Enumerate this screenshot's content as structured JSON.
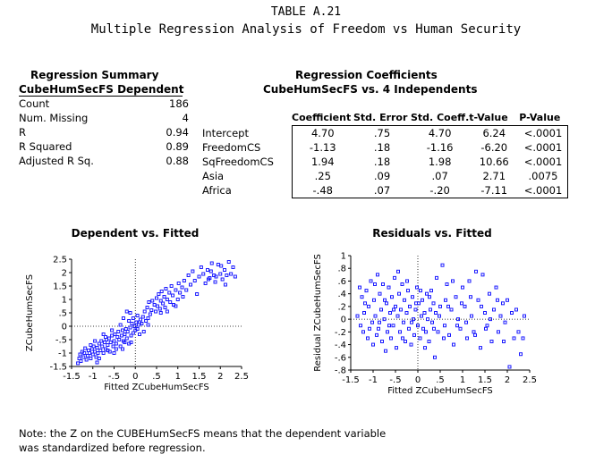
{
  "title": {
    "line1": "TABLE A.21",
    "line2": "Multiple Regression Analysis of Freedom vs Human Security"
  },
  "summary": {
    "heading": "Regression Summary",
    "subheading": "CubeHumSecFS Dependent",
    "rows": [
      {
        "label": "Count",
        "value": "186"
      },
      {
        "label": "Num. Missing",
        "value": "4"
      },
      {
        "label": "R",
        "value": "0.94"
      },
      {
        "label": "R Squared",
        "value": "0.89"
      },
      {
        "label": "Adjusted R Sq.",
        "value": "0.88"
      }
    ]
  },
  "coefficients": {
    "heading": "Regression Coefficients",
    "subheading": "CubeHumSecFS vs. 4 Independents",
    "columns": [
      "Coefficient",
      "Std. Error",
      "Std. Coeff.",
      "t-Value",
      "P-Value"
    ],
    "rows": [
      {
        "label": "Intercept",
        "values": [
          "4.70",
          ".75",
          "4.70",
          "6.24",
          "<.0001"
        ]
      },
      {
        "label": "FreedomCS",
        "values": [
          "-1.13",
          ".18",
          "-1.16",
          "-6.20",
          "<.0001"
        ]
      },
      {
        "label": "SqFreedomCS",
        "values": [
          "1.94",
          ".18",
          "1.98",
          "10.66",
          "<.0001"
        ]
      },
      {
        "label": "Asia",
        "values": [
          ".25",
          ".09",
          ".07",
          "2.71",
          ".0075"
        ]
      },
      {
        "label": "Africa",
        "values": [
          "-.48",
          ".07",
          "-.20",
          "-7.11",
          "<.0001"
        ]
      }
    ]
  },
  "chart_data": [
    {
      "type": "scatter",
      "title": "Dependent vs. Fitted",
      "xlabel": "Fitted ZCubeHumSecFS",
      "ylabel": "ZCubeHumSecFS",
      "xlim": [
        -1.5,
        2.5
      ],
      "ylim": [
        -1.5,
        2.5
      ],
      "xticks": [
        "-1.5",
        "-1",
        "-.5",
        "0",
        ".5",
        "1",
        "1.5",
        "2",
        "2.5"
      ],
      "yticks": [
        "2.5",
        "2",
        "1.5",
        "1",
        ".5",
        "0",
        "-.5",
        "-1",
        "-1.5"
      ],
      "marker_color": "#1a1aff",
      "points": [
        [
          -1.35,
          -1.38
        ],
        [
          -1.32,
          -1.2
        ],
        [
          -1.3,
          -1.05
        ],
        [
          -1.28,
          -1.3
        ],
        [
          -1.25,
          -0.95
        ],
        [
          -1.22,
          -1.15
        ],
        [
          -1.2,
          -1.0
        ],
        [
          -1.18,
          -0.82
        ],
        [
          -1.15,
          -1.25
        ],
        [
          -1.12,
          -1.1
        ],
        [
          -1.1,
          -0.9
        ],
        [
          -1.08,
          -1.0
        ],
        [
          -1.05,
          -1.2
        ],
        [
          -1.02,
          -0.85
        ],
        [
          -1.0,
          -1.05
        ],
        [
          -0.98,
          -0.75
        ],
        [
          -0.95,
          -0.95
        ],
        [
          -0.92,
          -1.15
        ],
        [
          -0.9,
          -0.8
        ],
        [
          -0.88,
          -1.0
        ],
        [
          -0.85,
          -0.65
        ],
        [
          -0.82,
          -0.9
        ],
        [
          -0.8,
          -0.55
        ],
        [
          -0.78,
          -0.75
        ],
        [
          -0.75,
          -1.0
        ],
        [
          -0.72,
          -0.6
        ],
        [
          -0.7,
          -0.85
        ],
        [
          -0.68,
          -0.5
        ],
        [
          -0.65,
          -0.7
        ],
        [
          -0.62,
          -0.45
        ],
        [
          -0.6,
          -0.95
        ],
        [
          -0.58,
          -0.6
        ],
        [
          -0.55,
          -0.35
        ],
        [
          -0.52,
          -0.75
        ],
        [
          -0.5,
          -0.55
        ],
        [
          -0.48,
          -0.3
        ],
        [
          -0.45,
          -0.65
        ],
        [
          -0.42,
          -0.4
        ],
        [
          -0.4,
          -0.2
        ],
        [
          -0.38,
          -0.5
        ],
        [
          -0.35,
          -0.75
        ],
        [
          -0.32,
          -0.35
        ],
        [
          -0.3,
          -0.15
        ],
        [
          -0.28,
          -0.55
        ],
        [
          -0.25,
          -0.3
        ],
        [
          -0.22,
          -0.1
        ],
        [
          -0.2,
          -0.45
        ],
        [
          -0.18,
          -0.2
        ],
        [
          -0.15,
          -0.65
        ],
        [
          -0.12,
          -0.05
        ],
        [
          -0.1,
          -0.35
        ],
        [
          -0.08,
          0.1
        ],
        [
          -0.05,
          -0.25
        ],
        [
          -0.02,
          0.0
        ],
        [
          0.0,
          -0.15
        ],
        [
          0.02,
          0.15
        ],
        [
          0.05,
          -0.1
        ],
        [
          0.08,
          0.05
        ],
        [
          0.1,
          -0.3
        ],
        [
          0.12,
          0.25
        ],
        [
          -1.05,
          -0.7
        ],
        [
          -0.95,
          -0.55
        ],
        [
          -0.85,
          -1.2
        ],
        [
          -0.75,
          -0.3
        ],
        [
          -0.65,
          -0.9
        ],
        [
          -0.55,
          -0.15
        ],
        [
          -0.45,
          -0.85
        ],
        [
          -0.35,
          0.05
        ],
        [
          -0.25,
          -0.6
        ],
        [
          -0.15,
          0.2
        ],
        [
          -0.05,
          0.3
        ],
        [
          0.05,
          0.4
        ],
        [
          -0.12,
          0.5
        ],
        [
          -0.2,
          0.55
        ],
        [
          -0.28,
          0.3
        ],
        [
          0.15,
          0.1
        ],
        [
          0.18,
          0.35
        ],
        [
          0.2,
          -0.2
        ],
        [
          0.22,
          0.55
        ],
        [
          0.25,
          0.2
        ],
        [
          0.28,
          0.7
        ],
        [
          0.3,
          0.3
        ],
        [
          0.32,
          0.9
        ],
        [
          0.35,
          0.45
        ],
        [
          0.38,
          0.6
        ],
        [
          0.4,
          0.95
        ],
        [
          0.45,
          0.8
        ],
        [
          0.48,
          0.55
        ],
        [
          0.5,
          1.05
        ],
        [
          0.52,
          0.75
        ],
        [
          0.55,
          1.2
        ],
        [
          0.58,
          0.65
        ],
        [
          0.6,
          0.95
        ],
        [
          0.62,
          1.3
        ],
        [
          0.65,
          0.85
        ],
        [
          0.68,
          1.1
        ],
        [
          0.7,
          0.7
        ],
        [
          0.72,
          1.4
        ],
        [
          0.75,
          1.0
        ],
        [
          0.8,
          1.25
        ],
        [
          0.82,
          0.9
        ],
        [
          0.85,
          1.5
        ],
        [
          0.88,
          1.15
        ],
        [
          0.9,
          0.8
        ],
        [
          0.95,
          1.35
        ],
        [
          1.0,
          1.0
        ],
        [
          1.02,
          1.6
        ],
        [
          1.05,
          1.25
        ],
        [
          1.1,
          1.45
        ],
        [
          1.12,
          1.1
        ],
        [
          1.15,
          1.7
        ],
        [
          1.2,
          1.35
        ],
        [
          1.25,
          1.9
        ],
        [
          1.3,
          1.55
        ],
        [
          1.35,
          2.05
        ],
        [
          1.4,
          1.7
        ],
        [
          1.45,
          1.2
        ],
        [
          1.5,
          1.85
        ],
        [
          1.55,
          2.2
        ],
        [
          1.6,
          1.95
        ],
        [
          1.65,
          1.6
        ],
        [
          1.7,
          2.1
        ],
        [
          1.75,
          1.8
        ],
        [
          1.8,
          2.35
        ],
        [
          1.85,
          1.9
        ],
        [
          1.9,
          1.85
        ],
        [
          1.95,
          2.3
        ],
        [
          2.0,
          1.95
        ],
        [
          2.05,
          1.75
        ],
        [
          2.1,
          2.1
        ],
        [
          2.15,
          1.9
        ],
        [
          2.2,
          2.4
        ],
        [
          2.25,
          1.95
        ],
        [
          2.3,
          2.2
        ],
        [
          2.35,
          1.85
        ],
        [
          1.72,
          1.75
        ],
        [
          1.78,
          2.05
        ],
        [
          1.88,
          1.65
        ],
        [
          2.02,
          2.25
        ],
        [
          2.12,
          1.55
        ],
        [
          -0.9,
          -1.35
        ],
        [
          -0.7,
          -0.4
        ],
        [
          -0.5,
          -1.0
        ],
        [
          -0.3,
          -0.85
        ],
        [
          -0.1,
          -0.6
        ],
        [
          0.1,
          0.15
        ],
        [
          0.3,
          0.05
        ],
        [
          0.6,
          0.5
        ],
        [
          0.75,
          0.55
        ],
        [
          0.95,
          0.75
        ]
      ]
    },
    {
      "type": "scatter",
      "title": "Residuals vs. Fitted",
      "xlabel": "Fitted ZCubeHumSecFS",
      "ylabel": "Residual ZCubeHumSecFS",
      "xlim": [
        -1.5,
        2.5
      ],
      "ylim": [
        -0.8,
        1.0
      ],
      "xticks": [
        "-1.5",
        "-1",
        "-.5",
        "0",
        ".5",
        "1",
        "1.5",
        "2",
        "2.5"
      ],
      "yticks": [
        "1",
        ".8",
        ".6",
        ".4",
        ".2",
        "0",
        "-.2",
        "-.4",
        "-.6",
        "-.8"
      ],
      "marker_color": "#1a1aff",
      "points": [
        [
          -1.35,
          0.05
        ],
        [
          -1.3,
          0.5
        ],
        [
          -1.28,
          -0.1
        ],
        [
          -1.25,
          0.35
        ],
        [
          -1.22,
          -0.2
        ],
        [
          -1.2,
          0.1
        ],
        [
          -1.15,
          0.45
        ],
        [
          -1.12,
          -0.3
        ],
        [
          -1.1,
          0.2
        ],
        [
          -1.05,
          0.6
        ],
        [
          -1.02,
          -0.05
        ],
        [
          -1.0,
          -0.4
        ],
        [
          -0.98,
          0.3
        ],
        [
          -0.95,
          0.05
        ],
        [
          -0.92,
          -0.25
        ],
        [
          -0.9,
          0.7
        ],
        [
          -0.88,
          -0.15
        ],
        [
          -0.85,
          0.4
        ],
        [
          -0.82,
          0.15
        ],
        [
          -0.8,
          -0.35
        ],
        [
          -0.78,
          0.55
        ],
        [
          -0.75,
          0.0
        ],
        [
          -0.72,
          -0.5
        ],
        [
          -0.7,
          0.25
        ],
        [
          -0.68,
          -0.2
        ],
        [
          -0.65,
          0.5
        ],
        [
          -0.62,
          0.1
        ],
        [
          -0.6,
          -0.3
        ],
        [
          -0.58,
          0.35
        ],
        [
          -0.55,
          -0.1
        ],
        [
          -0.52,
          0.65
        ],
        [
          -0.5,
          0.2
        ],
        [
          -0.48,
          -0.45
        ],
        [
          -0.45,
          0.05
        ],
        [
          -0.42,
          0.4
        ],
        [
          -0.4,
          -0.2
        ],
        [
          -0.38,
          0.15
        ],
        [
          -0.35,
          0.55
        ],
        [
          -0.32,
          -0.05
        ],
        [
          -0.3,
          0.3
        ],
        [
          -0.28,
          -0.35
        ],
        [
          -0.25,
          0.1
        ],
        [
          -0.22,
          0.45
        ],
        [
          -0.2,
          -0.15
        ],
        [
          -0.18,
          0.2
        ],
        [
          -0.15,
          -0.4
        ],
        [
          -0.12,
          0.35
        ],
        [
          -0.1,
          0.0
        ],
        [
          -0.08,
          -0.25
        ],
        [
          -0.05,
          0.15
        ],
        [
          -0.02,
          0.5
        ],
        [
          0.0,
          -0.1
        ],
        [
          0.02,
          0.25
        ],
        [
          0.05,
          -0.3
        ],
        [
          0.08,
          0.05
        ],
        [
          0.1,
          0.3
        ],
        [
          0.12,
          -0.15
        ],
        [
          0.15,
          0.1
        ],
        [
          0.18,
          -0.2
        ],
        [
          0.2,
          0.4
        ],
        [
          0.22,
          0.0
        ],
        [
          0.25,
          -0.35
        ],
        [
          0.28,
          0.15
        ],
        [
          0.3,
          0.45
        ],
        [
          0.32,
          -0.05
        ],
        [
          0.35,
          0.25
        ],
        [
          0.38,
          -0.6
        ],
        [
          0.4,
          0.1
        ],
        [
          0.42,
          0.65
        ],
        [
          0.45,
          -0.2
        ],
        [
          0.5,
          0.2
        ],
        [
          0.55,
          0.85
        ],
        [
          0.6,
          -0.1
        ],
        [
          0.62,
          0.3
        ],
        [
          0.65,
          0.55
        ],
        [
          0.7,
          -0.25
        ],
        [
          0.75,
          0.15
        ],
        [
          0.8,
          -0.4
        ],
        [
          0.85,
          0.35
        ],
        [
          0.9,
          0.0
        ],
        [
          0.95,
          -0.15
        ],
        [
          1.0,
          0.5
        ],
        [
          1.05,
          0.2
        ],
        [
          1.1,
          -0.3
        ],
        [
          1.15,
          0.6
        ],
        [
          1.2,
          0.05
        ],
        [
          1.25,
          -0.2
        ],
        [
          1.3,
          0.75
        ],
        [
          1.35,
          0.3
        ],
        [
          1.4,
          -0.45
        ],
        [
          1.45,
          0.7
        ],
        [
          1.5,
          0.1
        ],
        [
          1.55,
          -0.1
        ],
        [
          1.6,
          0.4
        ],
        [
          1.65,
          -0.35
        ],
        [
          1.7,
          0.15
        ],
        [
          1.75,
          0.5
        ],
        [
          1.8,
          -0.2
        ],
        [
          1.85,
          0.05
        ],
        [
          1.9,
          0.25
        ],
        [
          1.95,
          -0.05
        ],
        [
          2.0,
          0.3
        ],
        [
          2.05,
          -0.75
        ],
        [
          2.1,
          0.1
        ],
        [
          2.15,
          -0.3
        ],
        [
          2.2,
          0.15
        ],
        [
          2.25,
          -0.2
        ],
        [
          2.3,
          -0.55
        ],
        [
          2.35,
          -0.3
        ],
        [
          2.38,
          0.05
        ],
        [
          -1.18,
          0.25
        ],
        [
          -1.08,
          -0.15
        ],
        [
          -0.96,
          0.55
        ],
        [
          -0.86,
          -0.05
        ],
        [
          -0.74,
          0.3
        ],
        [
          -0.64,
          -0.1
        ],
        [
          -0.54,
          0.15
        ],
        [
          -0.44,
          0.75
        ],
        [
          -0.34,
          -0.3
        ],
        [
          -0.24,
          0.6
        ],
        [
          -0.14,
          -0.05
        ],
        [
          -0.04,
          0.25
        ],
        [
          0.06,
          0.45
        ],
        [
          0.16,
          -0.45
        ],
        [
          0.26,
          0.35
        ],
        [
          0.36,
          -0.15
        ],
        [
          0.48,
          0.05
        ],
        [
          0.58,
          -0.3
        ],
        [
          0.68,
          0.2
        ],
        [
          0.78,
          0.6
        ],
        [
          0.88,
          -0.1
        ],
        [
          0.98,
          0.25
        ],
        [
          1.08,
          -0.05
        ],
        [
          1.18,
          0.35
        ],
        [
          1.28,
          -0.25
        ],
        [
          1.42,
          0.2
        ],
        [
          1.52,
          -0.15
        ],
        [
          1.62,
          0.0
        ],
        [
          1.78,
          0.3
        ],
        [
          1.92,
          -0.35
        ]
      ]
    }
  ],
  "note": {
    "line1": "Note: the Z on the CUBEHumSecFS means that the dependent variable",
    "line2": "was standardized before regression."
  }
}
